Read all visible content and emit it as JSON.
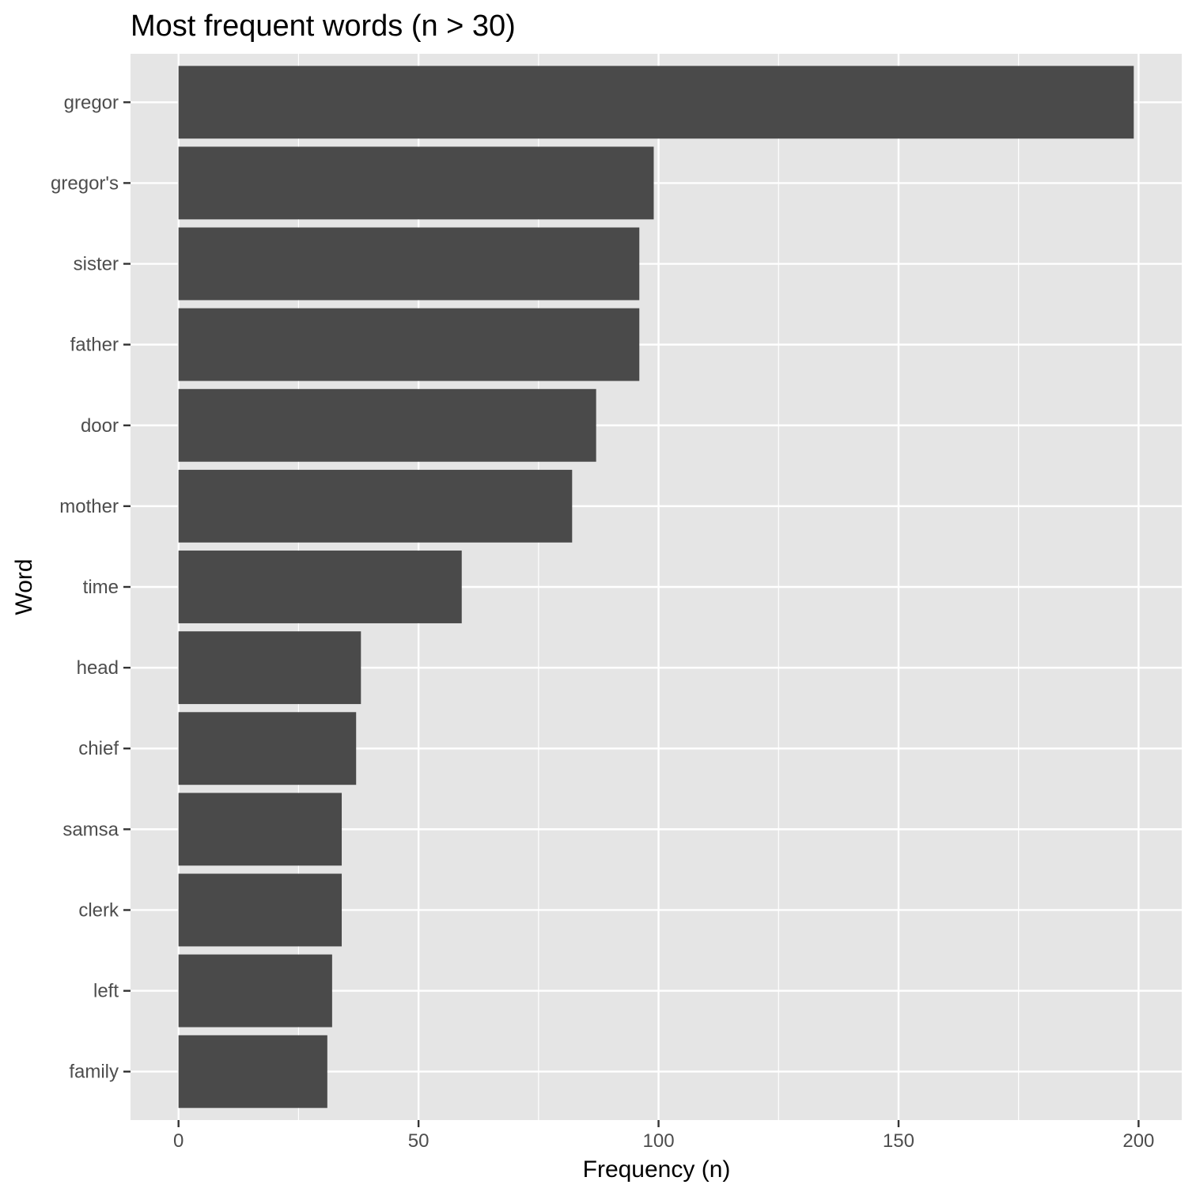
{
  "chart_data": {
    "type": "bar",
    "orientation": "horizontal",
    "title": "Most frequent words (n > 30)",
    "xlabel": "Frequency (n)",
    "ylabel": "Word",
    "categories": [
      "gregor",
      "gregor's",
      "sister",
      "father",
      "door",
      "mother",
      "time",
      "head",
      "chief",
      "samsa",
      "clerk",
      "left",
      "family"
    ],
    "values": [
      199,
      99,
      96,
      96,
      87,
      82,
      59,
      38,
      37,
      34,
      34,
      32,
      31
    ],
    "xlim": [
      -10,
      209
    ],
    "xticks": [
      0,
      50,
      100,
      150,
      200
    ],
    "xtick_labels": [
      "0",
      "50",
      "100",
      "150",
      "200"
    ],
    "grid": true,
    "colors": {
      "panel": "#e5e5e5",
      "grid": "#ffffff",
      "bar": "#4a4a4a"
    }
  }
}
